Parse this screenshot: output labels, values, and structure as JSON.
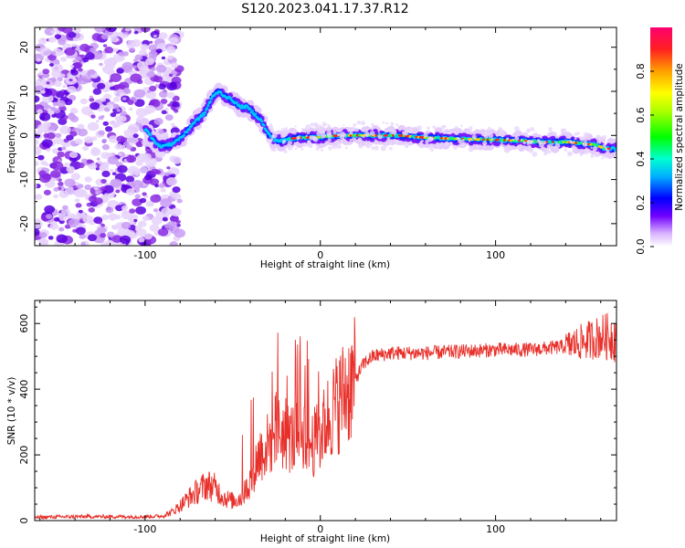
{
  "chart_data": [
    {
      "type": "heatmap",
      "title": "S120.2023.041.17.37.R12",
      "xlabel": "Height of straight line (km)",
      "ylabel": "Frequency (Hz)",
      "xlim": [
        -163,
        169
      ],
      "ylim": [
        -25,
        24.5
      ],
      "xticks": [
        -100,
        0,
        100
      ],
      "xtick_labels": [
        "-100",
        "0",
        "100"
      ],
      "yticks": [
        -20,
        -10,
        0,
        10,
        20
      ],
      "ytick_labels": [
        "-20",
        "-10",
        "0",
        "10",
        "20"
      ],
      "ridge": {
        "x": [
          -100,
          -92,
          -85,
          -78,
          -72,
          -66,
          -62,
          -58,
          -55,
          -50,
          -46,
          -42,
          -38,
          -34,
          -30,
          -26,
          -22,
          -18,
          -12,
          0,
          10,
          25,
          45,
          60,
          80,
          100,
          115,
          125,
          140,
          150,
          158,
          162,
          169
        ],
        "y": [
          1.5,
          -2.5,
          -2,
          0,
          3,
          5,
          8.5,
          10,
          9,
          8,
          6.5,
          6.5,
          5,
          3.5,
          0.5,
          -1,
          -1.3,
          -0.8,
          -0.5,
          -0.4,
          0,
          0,
          0,
          -0.5,
          -0.8,
          -1,
          -1.2,
          -1.5,
          -1.5,
          -1.8,
          -2.2,
          -3,
          -3
        ]
      },
      "noise_region": {
        "x": [
          -163,
          -88
        ],
        "y": [
          -25,
          24.5
        ]
      },
      "colorbar": {
        "label": "Normalized spectral amplitude",
        "range": [
          0,
          1
        ],
        "ticks": [
          0.0,
          0.2,
          0.4,
          0.6,
          0.8
        ],
        "tick_labels": [
          "0.0",
          "0.2",
          "0.4",
          "0.6",
          "0.8"
        ]
      },
      "grid": false
    },
    {
      "type": "line",
      "xlabel": "Height of straight line (km)",
      "ylabel": "SNR (10 * v/v)",
      "xlim": [
        -163,
        169
      ],
      "ylim": [
        0,
        670
      ],
      "xticks": [
        -100,
        0,
        100
      ],
      "xtick_labels": [
        "-100",
        "0",
        "100"
      ],
      "yticks": [
        0,
        200,
        400,
        600
      ],
      "ytick_labels": [
        "0",
        "200",
        "400",
        "600"
      ],
      "series": [
        {
          "color": "#e8302a",
          "x": [
            -163,
            -140,
            -120,
            -100,
            -90,
            -85,
            -80,
            -75,
            -70,
            -65,
            -60,
            -55,
            -50,
            -45,
            -40,
            -35,
            -30,
            -25,
            -20,
            -15,
            -10,
            -5,
            0,
            5,
            10,
            15,
            20,
            25,
            30,
            40,
            60,
            80,
            100,
            120,
            140,
            160,
            169
          ],
          "y": [
            10,
            12,
            12,
            12,
            14,
            25,
            45,
            70,
            90,
            110,
            100,
            70,
            60,
            70,
            120,
            200,
            230,
            280,
            260,
            250,
            280,
            230,
            260,
            320,
            360,
            400,
            430,
            480,
            500,
            510,
            510,
            515,
            520,
            520,
            530,
            560,
            560
          ]
        }
      ],
      "grid": false
    }
  ],
  "colors": {
    "series_line": "#e8302a",
    "frame": "#000000"
  }
}
